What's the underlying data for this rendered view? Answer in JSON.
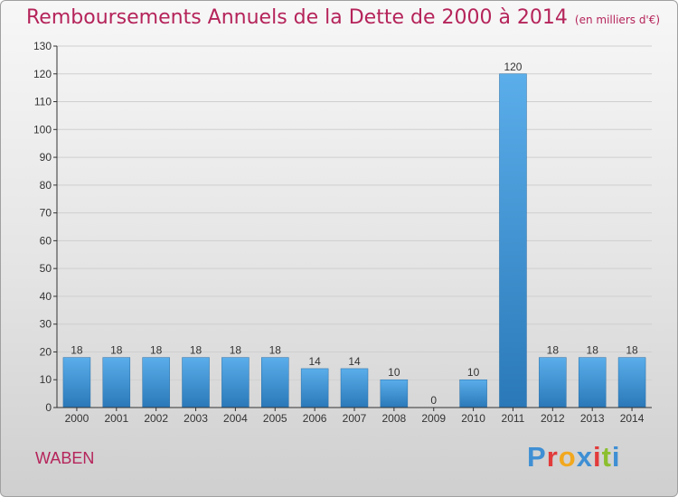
{
  "header": {
    "title": "Remboursements Annuels de la Dette de 2000 à 2014",
    "unit": "(en milliers d'€)"
  },
  "footer": {
    "commune": "WABEN",
    "logo_text": "Proxiti",
    "logo_colors": [
      "#3f8fd4",
      "#e23b3b",
      "#f2a81e",
      "#3f8fd4",
      "#e23b3b",
      "#8cbf2f",
      "#3f8fd4"
    ]
  },
  "colors": {
    "title": "#b5245a",
    "bar_top": "#5aaeea",
    "bar_bottom": "#2a78b8",
    "axis": "#333333",
    "grid": "#cfcfcf"
  },
  "chart_data": {
    "type": "bar",
    "title": "Remboursements Annuels de la Dette de 2000 à 2014",
    "subtitle": "(en milliers d'€)",
    "categories": [
      "2000",
      "2001",
      "2002",
      "2003",
      "2004",
      "2005",
      "2006",
      "2007",
      "2008",
      "2009",
      "2010",
      "2011",
      "2012",
      "2013",
      "2014"
    ],
    "values": [
      18,
      18,
      18,
      18,
      18,
      18,
      14,
      14,
      10,
      0,
      10,
      120,
      18,
      18,
      18
    ],
    "ylim": [
      0,
      130
    ],
    "yticks": [
      0,
      10,
      20,
      30,
      40,
      50,
      60,
      70,
      80,
      90,
      100,
      110,
      120,
      130
    ],
    "grid": true,
    "data_labels": true
  }
}
